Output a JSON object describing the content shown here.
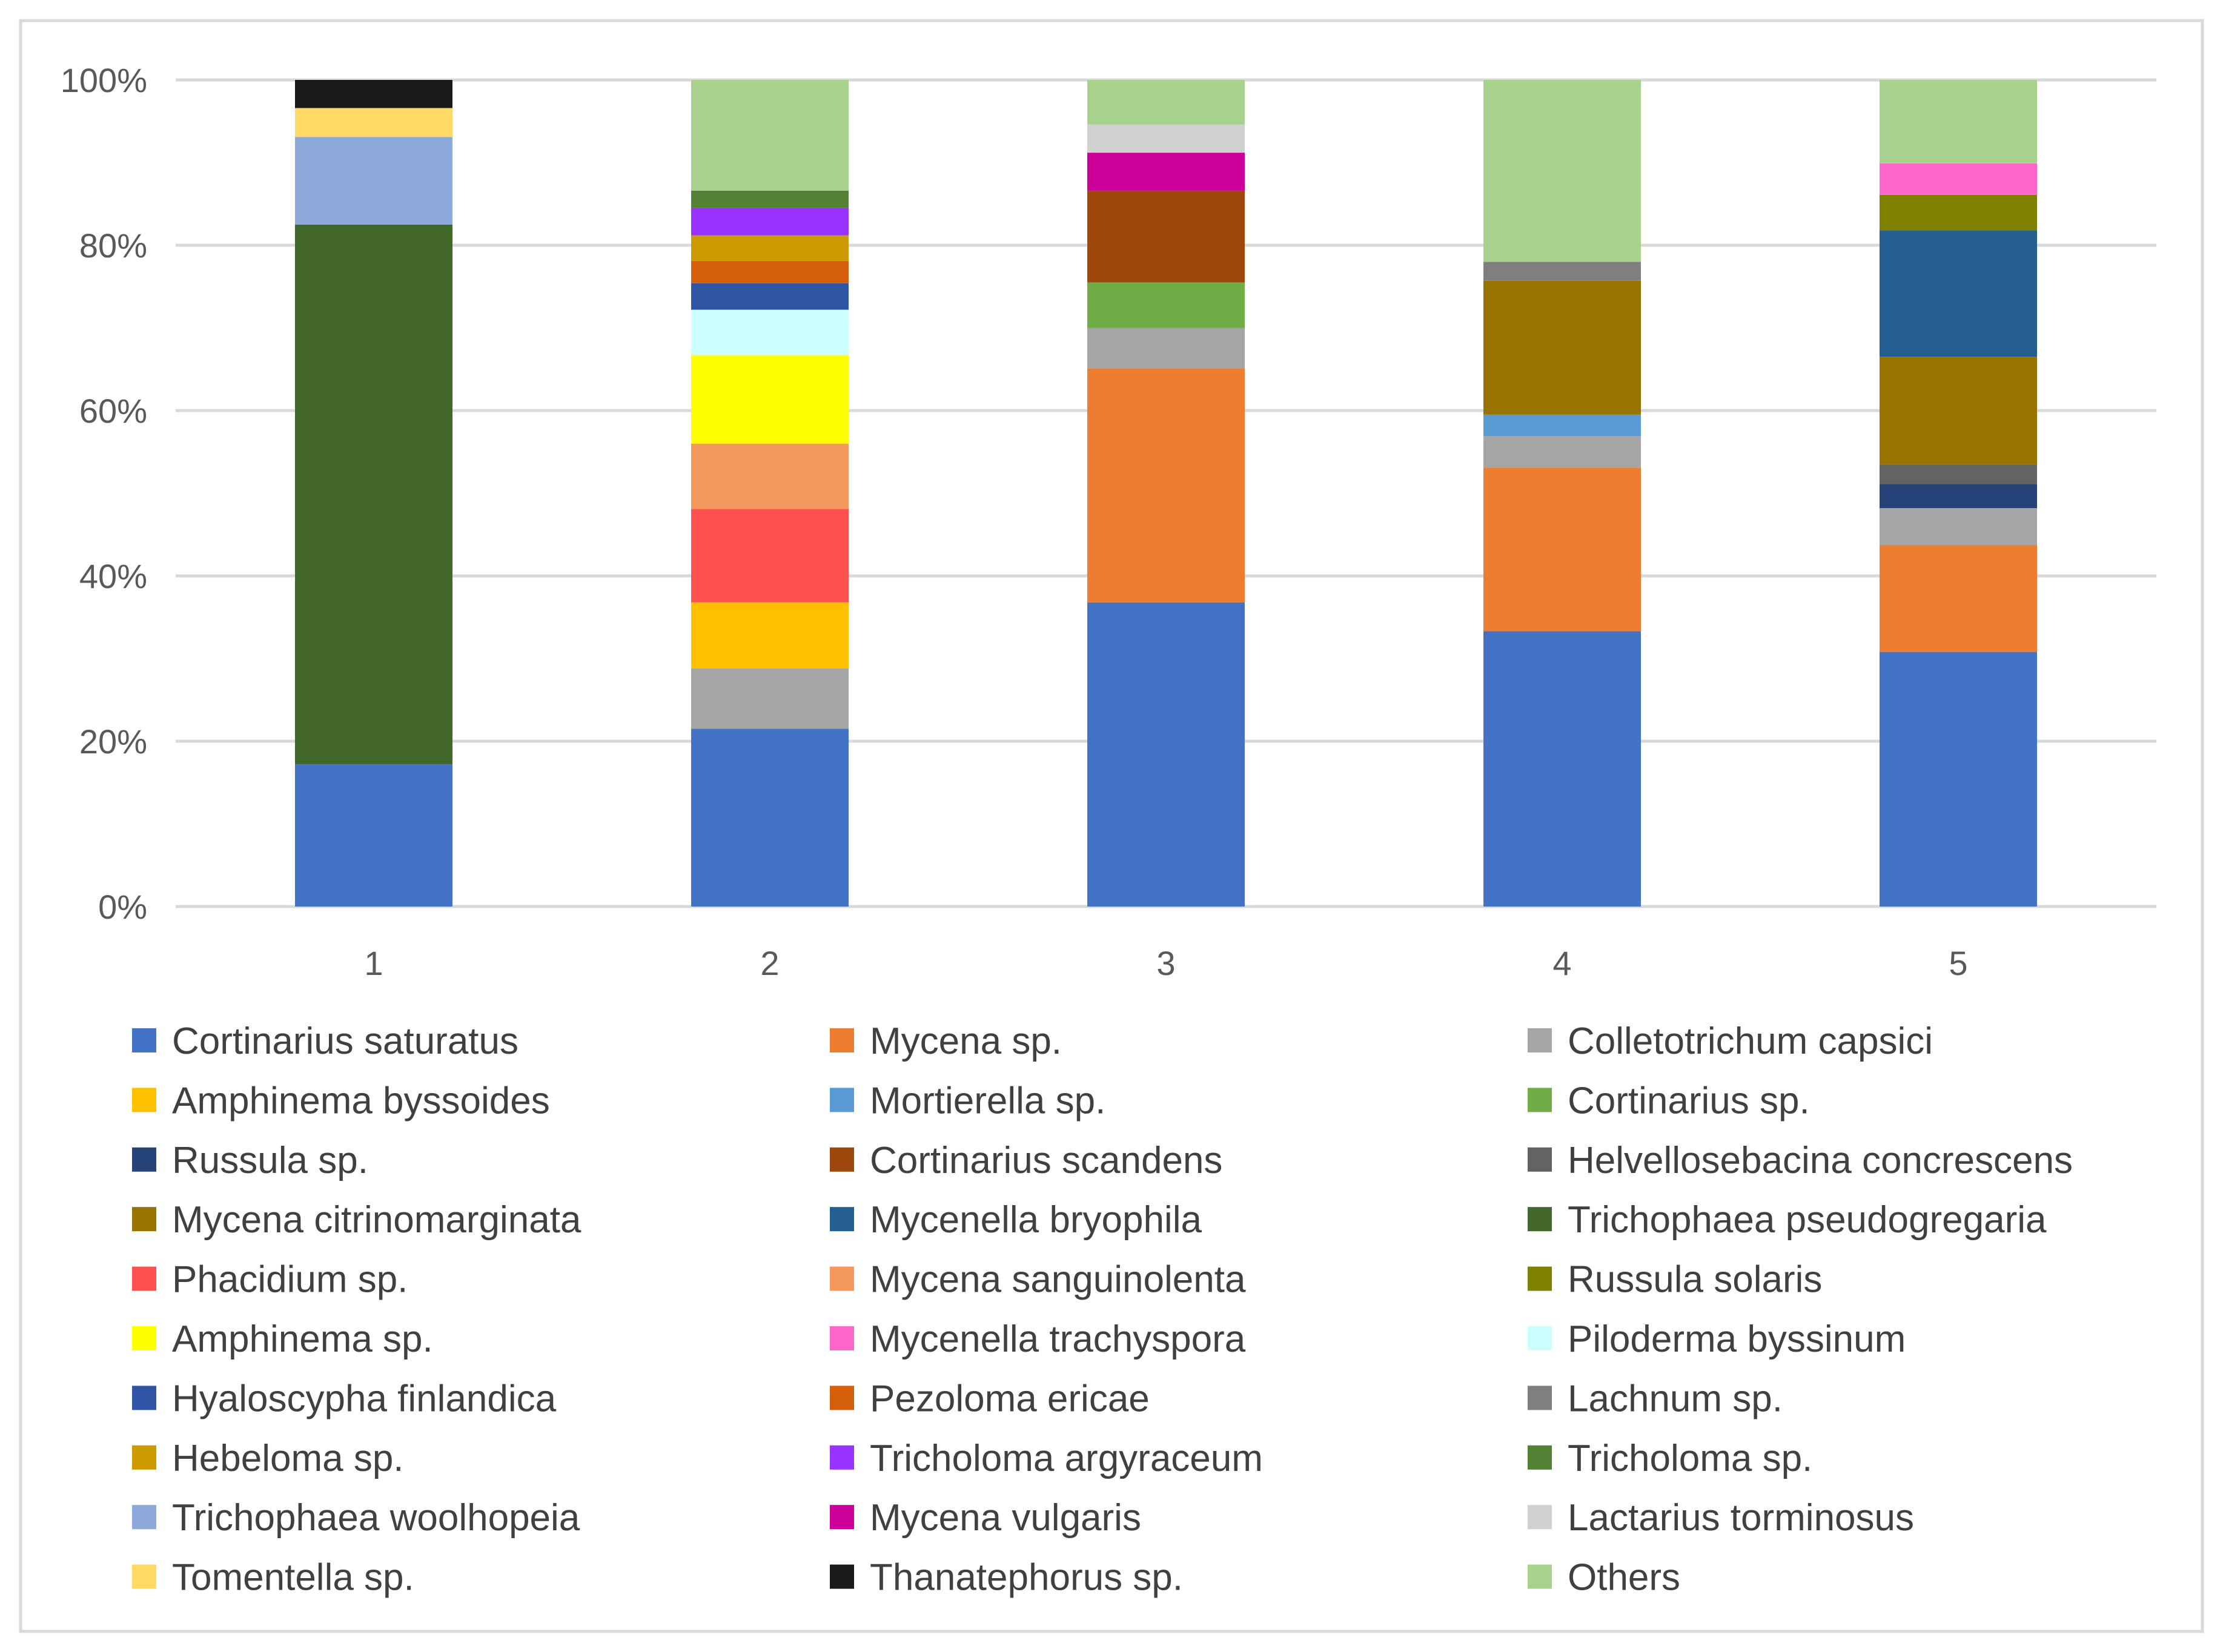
{
  "chart_data": {
    "type": "bar",
    "stacked": true,
    "percent_stacked": true,
    "title": "",
    "xlabel": "",
    "ylabel": "",
    "ylim": [
      0,
      100
    ],
    "y_ticks": [
      "0%",
      "20%",
      "40%",
      "60%",
      "80%",
      "100%"
    ],
    "y_tick_values": [
      0,
      20,
      40,
      60,
      80,
      100
    ],
    "grid": true,
    "legend_position": "bottom",
    "categories": [
      "1",
      "2",
      "3",
      "4",
      "5"
    ],
    "series": [
      {
        "name": "Cortinarius saturatus",
        "color": "#4472C4",
        "values": [
          17.2,
          21.5,
          36.8,
          33.3,
          30.8
        ]
      },
      {
        "name": "Mycena sp.",
        "color": "#ED7D31",
        "values": [
          0,
          0,
          28.3,
          19.8,
          12.9
        ]
      },
      {
        "name": "Colletotrichum capsici",
        "color": "#A5A5A5",
        "values": [
          0,
          7.3,
          4.9,
          3.8,
          4.5
        ]
      },
      {
        "name": "Amphinema byssoides",
        "color": "#FFC000",
        "values": [
          0,
          8.0,
          0,
          0,
          0
        ]
      },
      {
        "name": "Mortierella sp.",
        "color": "#5B9BD5",
        "values": [
          0,
          0,
          0,
          2.6,
          0
        ]
      },
      {
        "name": "Cortinarius sp.",
        "color": "#70AD47",
        "values": [
          0,
          0,
          5.5,
          0,
          0
        ]
      },
      {
        "name": "Russula sp.",
        "color": "#264478",
        "values": [
          0,
          0,
          0,
          0,
          2.9
        ]
      },
      {
        "name": "Cortinarius scandens",
        "color": "#9E480E",
        "values": [
          0,
          0,
          11.1,
          0,
          0
        ]
      },
      {
        "name": "Helvellosebacina concrescens",
        "color": "#636363",
        "values": [
          0,
          0,
          0,
          0,
          2.4
        ]
      },
      {
        "name": "Mycena citrinomarginata",
        "color": "#997300",
        "values": [
          0,
          0,
          0,
          16.2,
          13.0
        ]
      },
      {
        "name": "Mycenella bryophila",
        "color": "#255E91",
        "values": [
          0,
          0,
          0,
          0,
          15.3
        ]
      },
      {
        "name": "Trichophaea pseudogregaria",
        "color": "#43682B",
        "values": [
          65.3,
          0,
          0,
          0,
          0
        ]
      },
      {
        "name": "Phacidium sp.",
        "color": "#FF5050",
        "values": [
          0,
          11.3,
          0,
          0,
          0
        ]
      },
      {
        "name": "Mycena sanguinolenta",
        "color": "#F4995B",
        "values": [
          0,
          7.9,
          0,
          0,
          0
        ]
      },
      {
        "name": "Russula solaris",
        "color": "#7F7F00",
        "values": [
          0,
          0,
          0,
          0,
          4.3
        ]
      },
      {
        "name": "Amphinema sp.",
        "color": "#FFFF00",
        "values": [
          0,
          10.7,
          0,
          0,
          0
        ]
      },
      {
        "name": "Mycenella trachyspora",
        "color": "#FF66CC",
        "values": [
          0,
          0,
          0,
          0,
          3.8
        ]
      },
      {
        "name": "Piloderma byssinum",
        "color": "#CCFFFF",
        "values": [
          0,
          5.5,
          0,
          0,
          0
        ]
      },
      {
        "name": "Hyaloscypha finlandica",
        "color": "#2F55A4",
        "values": [
          0,
          3.2,
          0,
          0,
          0
        ]
      },
      {
        "name": "Pezoloma ericae",
        "color": "#D55E0B",
        "values": [
          0,
          2.7,
          0,
          0,
          0
        ]
      },
      {
        "name": "Lachnum sp.",
        "color": "#7F7F7F",
        "values": [
          0,
          0,
          0,
          2.3,
          0
        ]
      },
      {
        "name": "Hebeloma sp.",
        "color": "#CC9900",
        "values": [
          0,
          3.1,
          0,
          0,
          0
        ]
      },
      {
        "name": "Tricholoma argyraceum",
        "color": "#9933FF",
        "values": [
          0,
          3.3,
          0,
          0,
          0
        ]
      },
      {
        "name": "Tricholoma sp.",
        "color": "#548235",
        "values": [
          0,
          2.1,
          0,
          0,
          0
        ]
      },
      {
        "name": "Trichophaea woolhopeia",
        "color": "#8EA9DB",
        "values": [
          10.6,
          0,
          0,
          0,
          0
        ]
      },
      {
        "name": "Mycena vulgaris",
        "color": "#CC0099",
        "values": [
          0,
          0,
          4.6,
          0,
          0
        ]
      },
      {
        "name": "Lactarius torminosus",
        "color": "#D0D0D0",
        "values": [
          0,
          0,
          3.4,
          0,
          0
        ]
      },
      {
        "name": "Tomentella sp.",
        "color": "#FFD966",
        "values": [
          3.5,
          0,
          0,
          0,
          0
        ]
      },
      {
        "name": "Thanatephorus sp.",
        "color": "#1A1A1A",
        "values": [
          3.4,
          0,
          0,
          0,
          0
        ]
      },
      {
        "name": "Others",
        "color": "#A9D18E",
        "values": [
          0,
          13.4,
          5.4,
          22.0,
          10.1
        ]
      }
    ],
    "stack_order": [
      [
        "Cortinarius saturatus",
        "Trichophaea pseudogregaria",
        "Trichophaea woolhopeia",
        "Tomentella sp.",
        "Thanatephorus sp."
      ],
      [
        "Cortinarius saturatus",
        "Colletotrichum capsici",
        "Amphinema byssoides",
        "Phacidium sp.",
        "Mycena sanguinolenta",
        "Amphinema sp.",
        "Piloderma byssinum",
        "Hyaloscypha finlandica",
        "Pezoloma ericae",
        "Hebeloma sp.",
        "Tricholoma argyraceum",
        "Tricholoma sp.",
        "Others"
      ],
      [
        "Cortinarius saturatus",
        "Mycena sp.",
        "Colletotrichum capsici",
        "Cortinarius sp.",
        "Cortinarius scandens",
        "Mycena vulgaris",
        "Lactarius torminosus",
        "Others"
      ],
      [
        "Cortinarius saturatus",
        "Mycena sp.",
        "Colletotrichum capsici",
        "Mortierella sp.",
        "Mycena citrinomarginata",
        "Lachnum sp.",
        "Others"
      ],
      [
        "Cortinarius saturatus",
        "Mycena sp.",
        "Colletotrichum capsici",
        "Russula sp.",
        "Helvellosebacina concrescens",
        "Mycena citrinomarginata",
        "Mycenella bryophila",
        "Russula solaris",
        "Mycenella trachyspora",
        "Others"
      ]
    ]
  }
}
